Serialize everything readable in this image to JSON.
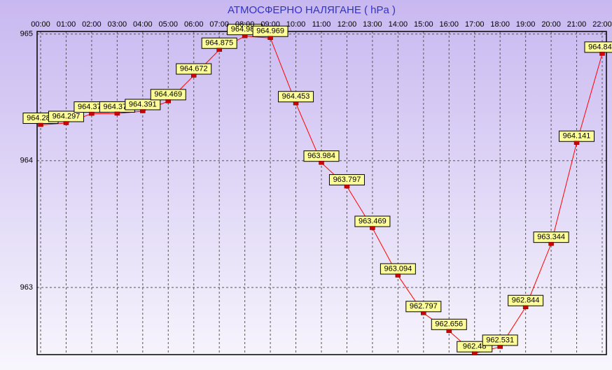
{
  "chart_data": {
    "type": "line",
    "title": "АТМОСФЕРНО НАЛЯГАНЕ  ( hPa )",
    "categories": [
      "00:00",
      "01:00",
      "02:00",
      "03:00",
      "04:00",
      "05:00",
      "06:00",
      "07:00",
      "08:00",
      "09:00",
      "10:00",
      "11:00",
      "12:00",
      "13:00",
      "14:00",
      "15:00",
      "16:00",
      "17:00",
      "18:00",
      "19:00",
      "20:00",
      "21:00",
      "22:00"
    ],
    "values": [
      964.283,
      964.297,
      964.371,
      964.372,
      964.391,
      964.469,
      964.672,
      964.875,
      964.983,
      964.969,
      964.453,
      963.984,
      963.797,
      963.469,
      963.094,
      962.797,
      962.656,
      962.48,
      962.531,
      962.844,
      963.344,
      964.141,
      964.844
    ],
    "color": "#ff0000",
    "marker_color": "#cc0000",
    "label_color": "#ffff99",
    "ylim": [
      962.47,
      965.02
    ],
    "yticks": [
      963,
      964,
      965
    ],
    "grid": true
  }
}
